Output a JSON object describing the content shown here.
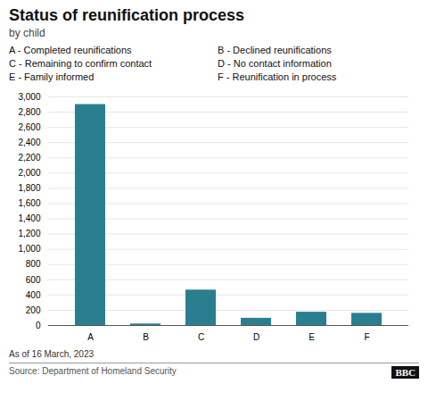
{
  "chart_data": {
    "type": "bar",
    "title": "Status of reunification process",
    "subtitle": "by child",
    "categories": [
      "A",
      "B",
      "C",
      "D",
      "E",
      "F"
    ],
    "values": [
      2900,
      20,
      465,
      95,
      175,
      160
    ],
    "color": "#2a7f8f",
    "ylim": [
      0,
      3000
    ],
    "yticks": [
      0,
      200,
      400,
      600,
      800,
      {
        "value": 1000,
        "label": "1,000"
      },
      {
        "value": 1200,
        "label": "1,200"
      },
      {
        "value": 1400,
        "label": "1,400"
      },
      {
        "value": 1600,
        "label": "1,600"
      },
      {
        "value": 1800,
        "label": "1,800"
      },
      {
        "value": 2000,
        "label": "2,000"
      },
      {
        "value": 2200,
        "label": "2,200"
      },
      {
        "value": 2400,
        "label": "2,400"
      },
      {
        "value": 2600,
        "label": "2,600"
      },
      {
        "value": 2800,
        "label": "2,800"
      },
      {
        "value": 3000,
        "label": "3,000"
      }
    ],
    "grid": true,
    "annotations": [
      "A - Completed reunifications",
      "B - Declined reunifications",
      "C - Remaining to confirm contact",
      "D - No contact information",
      "E - Family informed",
      "F - Reunification in process",
      "As of 16 March, 2023",
      "Source: Department of Homeland Security",
      "BBC"
    ]
  }
}
